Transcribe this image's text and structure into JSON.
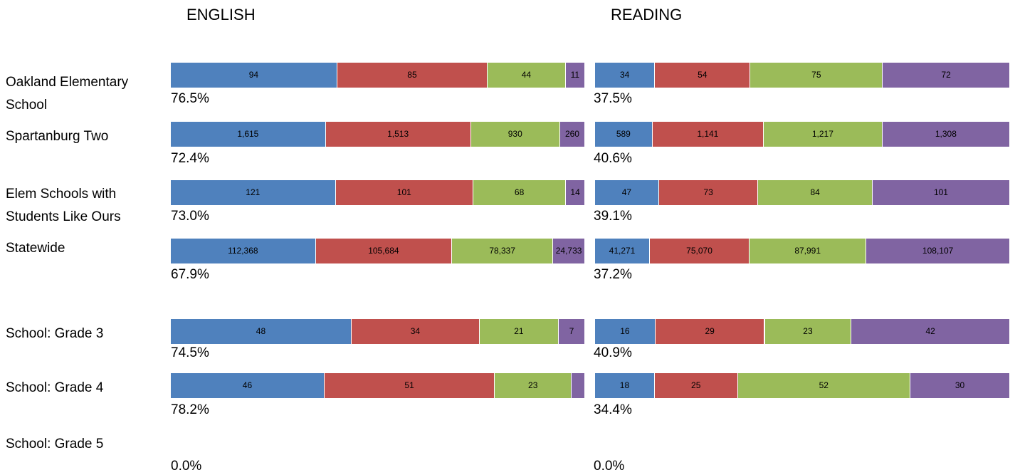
{
  "panel_titles": {
    "english": "ENGLISH",
    "reading": "READING"
  },
  "rows": [
    {
      "label_lines": [
        "Oakland Elementary",
        "School"
      ]
    },
    {
      "label_lines": [
        "Spartanburg Two"
      ]
    },
    {
      "label_lines": [
        "Elem Schools with",
        "Students Like Ours"
      ]
    },
    {
      "label_lines": [
        "Statewide"
      ]
    },
    {
      "label_lines": [
        "School:  Grade 3"
      ]
    },
    {
      "label_lines": [
        "School:  Grade 4"
      ]
    },
    {
      "label_lines": [
        "School:  Grade 5"
      ]
    }
  ],
  "colors": [
    "#4f81bd",
    "#c0504d",
    "#9bbb59",
    "#8064a2"
  ],
  "chart_data": [
    {
      "type": "bar",
      "orientation": "horizontal",
      "stacked": "percent",
      "title": "ENGLISH",
      "categories": [
        "Oakland Elementary School",
        "Spartanburg Two",
        "Elem Schools with Students Like Ours",
        "Statewide",
        "School:  Grade 3",
        "School:  Grade 4",
        "School:  Grade 5"
      ],
      "segments": [
        {
          "values": [
            94,
            85,
            44,
            11
          ],
          "labels": [
            "94",
            "85",
            "44",
            "11"
          ]
        },
        {
          "values": [
            1615,
            1513,
            930,
            260
          ],
          "labels": [
            "1,615",
            "1,513",
            "930",
            "260"
          ]
        },
        {
          "values": [
            121,
            101,
            68,
            14
          ],
          "labels": [
            "121",
            "101",
            "68",
            "14"
          ]
        },
        {
          "values": [
            112368,
            105684,
            78337,
            24733
          ],
          "labels": [
            "112,368",
            "105,684",
            "78,337",
            "24,733"
          ]
        },
        {
          "values": [
            48,
            34,
            21,
            7
          ],
          "labels": [
            "48",
            "34",
            "21",
            "7"
          ]
        },
        {
          "values": [
            46,
            51,
            23,
            4
          ],
          "labels": [
            "46",
            "51",
            "23",
            ""
          ]
        },
        {
          "values": [],
          "labels": []
        }
      ],
      "percent_labels": [
        "76.5%",
        "72.4%",
        "73.0%",
        "67.9%",
        "74.5%",
        "78.2%",
        "0.0%"
      ]
    },
    {
      "type": "bar",
      "orientation": "horizontal",
      "stacked": "percent",
      "title": "READING",
      "categories": [
        "Oakland Elementary School",
        "Spartanburg Two",
        "Elem Schools with Students Like Ours",
        "Statewide",
        "School:  Grade 3",
        "School:  Grade 4",
        "School:  Grade 5"
      ],
      "segments": [
        {
          "values": [
            34,
            54,
            75,
            72
          ],
          "labels": [
            "34",
            "54",
            "75",
            "72"
          ]
        },
        {
          "values": [
            589,
            1141,
            1217,
            1308
          ],
          "labels": [
            "589",
            "1,141",
            "1,217",
            "1,308"
          ]
        },
        {
          "values": [
            47,
            73,
            84,
            101
          ],
          "labels": [
            "47",
            "73",
            "84",
            "101"
          ]
        },
        {
          "values": [
            41271,
            75070,
            87991,
            108107
          ],
          "labels": [
            "41,271",
            "75,070",
            "87,991",
            "108,107"
          ]
        },
        {
          "values": [
            16,
            29,
            23,
            42
          ],
          "labels": [
            "16",
            "29",
            "23",
            "42"
          ]
        },
        {
          "values": [
            18,
            25,
            52,
            30
          ],
          "labels": [
            "18",
            "25",
            "52",
            "30"
          ]
        },
        {
          "values": [],
          "labels": []
        }
      ],
      "percent_labels": [
        "37.5%",
        "40.6%",
        "39.1%",
        "37.2%",
        "40.9%",
        "34.4%",
        "0.0%"
      ]
    }
  ]
}
